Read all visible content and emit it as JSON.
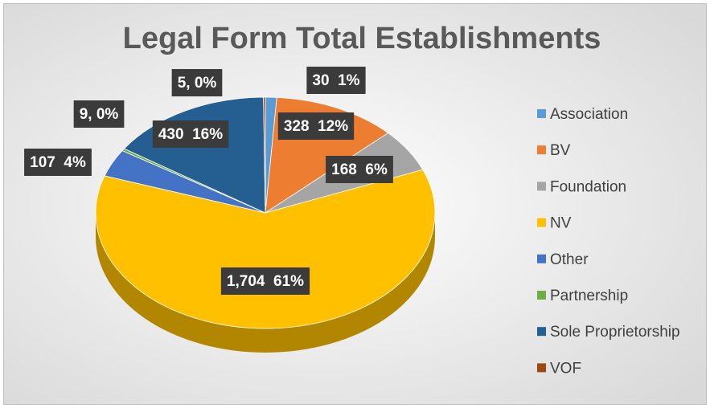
{
  "chart_data": {
    "type": "pie",
    "title": "Legal Form Total Establishments",
    "categories": [
      "Association",
      "BV",
      "Foundation",
      "NV",
      "Other",
      "Partnership",
      "Sole Proprietorship",
      "VOF"
    ],
    "values": [
      30,
      328,
      168,
      1704,
      107,
      9,
      430,
      5
    ],
    "value_labels": [
      "30  1%",
      "328  12%",
      "168  6%",
      "1,704  61%",
      "107  4%",
      "9, 0%",
      "430  16%",
      "5, 0%"
    ],
    "colors": [
      "#5b9bd5",
      "#ed7d31",
      "#a5a5a5",
      "#ffc000",
      "#4472c4",
      "#70ad47",
      "#255e91",
      "#9e480e"
    ],
    "legend": "right"
  }
}
